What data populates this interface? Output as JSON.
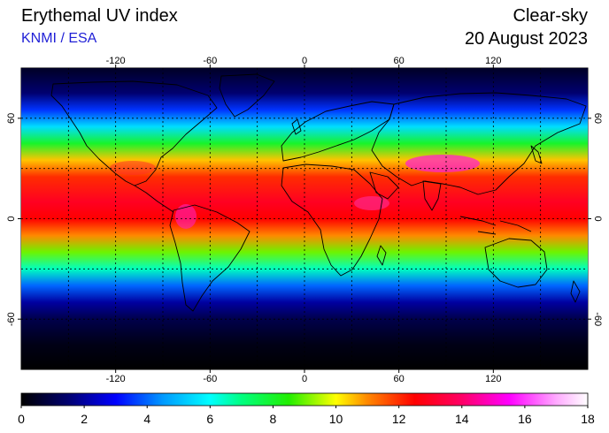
{
  "header": {
    "title": "Erythemal UV index",
    "source": "KNMI / ESA",
    "sky_condition": "Clear-sky",
    "date": "20 August 2023"
  },
  "map": {
    "lon_ticks": [
      -120,
      -60,
      0,
      60,
      120
    ],
    "lat_ticks": [
      60,
      0,
      -60
    ],
    "lon_range": [
      -180,
      180
    ],
    "lat_range": [
      -90,
      90
    ],
    "grid": "dotted, every 30 degrees",
    "lon_tick_labels": [
      "-120",
      "-60",
      "0",
      "60",
      "120"
    ],
    "lat_tick_labels": [
      "60",
      "0",
      "-60"
    ],
    "uv_by_latitude": [
      {
        "lat": 90,
        "uv": 0.5
      },
      {
        "lat": 75,
        "uv": 1.5
      },
      {
        "lat": 65,
        "uv": 3.5
      },
      {
        "lat": 55,
        "uv": 5.5
      },
      {
        "lat": 45,
        "uv": 8
      },
      {
        "lat": 35,
        "uv": 10.5
      },
      {
        "lat": 25,
        "uv": 12
      },
      {
        "lat": 10,
        "uv": 13
      },
      {
        "lat": 0,
        "uv": 12.5
      },
      {
        "lat": -10,
        "uv": 11
      },
      {
        "lat": -20,
        "uv": 9
      },
      {
        "lat": -30,
        "uv": 6.5
      },
      {
        "lat": -40,
        "uv": 4
      },
      {
        "lat": -50,
        "uv": 2
      },
      {
        "lat": -60,
        "uv": 1
      },
      {
        "lat": -75,
        "uv": 0.3
      },
      {
        "lat": -90,
        "uv": 0
      }
    ]
  },
  "colorbar": {
    "min": 0,
    "max": 18,
    "tick_labels": [
      "0",
      "2",
      "4",
      "6",
      "8",
      "10",
      "12",
      "14",
      "16",
      "18"
    ],
    "stops": [
      {
        "value": 0,
        "color": "#000000"
      },
      {
        "value": 1.5,
        "color": "#000070"
      },
      {
        "value": 3,
        "color": "#0000ff"
      },
      {
        "value": 4.5,
        "color": "#0099ff"
      },
      {
        "value": 6,
        "color": "#00ffff"
      },
      {
        "value": 7,
        "color": "#00ff80"
      },
      {
        "value": 8.5,
        "color": "#22ee00"
      },
      {
        "value": 10,
        "color": "#ffff00"
      },
      {
        "value": 11,
        "color": "#ff8800"
      },
      {
        "value": 12.5,
        "color": "#ff0000"
      },
      {
        "value": 14,
        "color": "#ff0066"
      },
      {
        "value": 15.5,
        "color": "#ff00ff"
      },
      {
        "value": 17,
        "color": "#ffaaff"
      },
      {
        "value": 18,
        "color": "#ffffff"
      }
    ]
  }
}
